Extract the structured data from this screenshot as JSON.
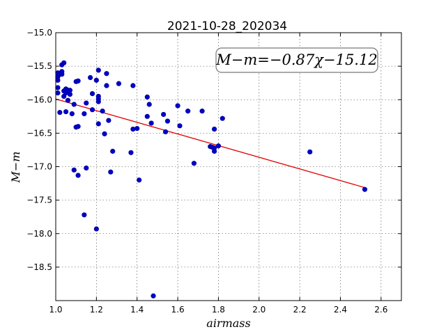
{
  "chart_data": {
    "type": "scatter",
    "title": "2021-10-28_202034",
    "xlabel": "airmass",
    "ylabel": "M−m",
    "xlim": [
      1.0,
      2.7
    ],
    "ylim": [
      -19.0,
      -15.0
    ],
    "y_inverted": true,
    "grid": true,
    "x_ticks": [
      1.0,
      1.2,
      1.4,
      1.6,
      1.8,
      2.0,
      2.2,
      2.4,
      2.6
    ],
    "x_tick_labels": [
      "1.0",
      "1.2",
      "1.4",
      "1.6",
      "1.8",
      "2.0",
      "2.2",
      "2.4",
      "2.6"
    ],
    "y_ticks": [
      -15.0,
      -15.5,
      -16.0,
      -16.5,
      -17.0,
      -17.5,
      -18.0,
      -18.5
    ],
    "y_tick_labels": [
      "−15.0",
      "−15.5",
      "−16.0",
      "−16.5",
      "−17.0",
      "−17.5",
      "−18.0",
      "−18.5"
    ],
    "annotation": "M−m=−0.87χ−15.12",
    "annotation_position": "top-right",
    "points": [
      [
        1.01,
        -15.6
      ],
      [
        1.01,
        -15.66
      ],
      [
        1.01,
        -15.71
      ],
      [
        1.01,
        -15.82
      ],
      [
        1.01,
        -15.9
      ],
      [
        1.02,
        -15.62
      ],
      [
        1.02,
        -16.19
      ],
      [
        1.03,
        -15.48
      ],
      [
        1.03,
        -15.58
      ],
      [
        1.03,
        -15.62
      ],
      [
        1.04,
        -15.45
      ],
      [
        1.04,
        -15.87
      ],
      [
        1.04,
        -15.95
      ],
      [
        1.05,
        -15.84
      ],
      [
        1.05,
        -15.9
      ],
      [
        1.05,
        -16.18
      ],
      [
        1.06,
        -15.86
      ],
      [
        1.06,
        -16.01
      ],
      [
        1.07,
        -15.86
      ],
      [
        1.07,
        -15.92
      ],
      [
        1.08,
        -16.21
      ],
      [
        1.09,
        -17.05
      ],
      [
        1.09,
        -16.07
      ],
      [
        1.1,
        -15.73
      ],
      [
        1.1,
        -16.41
      ],
      [
        1.11,
        -16.4
      ],
      [
        1.11,
        -15.72
      ],
      [
        1.11,
        -17.13
      ],
      [
        1.14,
        -16.21
      ],
      [
        1.14,
        -17.72
      ],
      [
        1.15,
        -16.05
      ],
      [
        1.15,
        -17.02
      ],
      [
        1.17,
        -15.67
      ],
      [
        1.18,
        -15.91
      ],
      [
        1.18,
        -16.15
      ],
      [
        1.2,
        -15.71
      ],
      [
        1.2,
        -17.93
      ],
      [
        1.21,
        -15.56
      ],
      [
        1.21,
        -15.95
      ],
      [
        1.21,
        -15.99
      ],
      [
        1.21,
        -16.03
      ],
      [
        1.21,
        -16.36
      ],
      [
        1.23,
        -16.17
      ],
      [
        1.24,
        -16.51
      ],
      [
        1.25,
        -15.61
      ],
      [
        1.25,
        -15.79
      ],
      [
        1.26,
        -16.31
      ],
      [
        1.27,
        -17.08
      ],
      [
        1.28,
        -16.77
      ],
      [
        1.31,
        -15.76
      ],
      [
        1.37,
        -16.79
      ],
      [
        1.38,
        -15.79
      ],
      [
        1.38,
        -16.44
      ],
      [
        1.4,
        -16.43
      ],
      [
        1.41,
        -17.2
      ],
      [
        1.45,
        -15.96
      ],
      [
        1.45,
        -16.25
      ],
      [
        1.46,
        -16.07
      ],
      [
        1.47,
        -16.35
      ],
      [
        1.48,
        -18.93
      ],
      [
        1.53,
        -16.22
      ],
      [
        1.54,
        -16.48
      ],
      [
        1.55,
        -16.32
      ],
      [
        1.6,
        -16.09
      ],
      [
        1.61,
        -16.39
      ],
      [
        1.65,
        -16.17
      ],
      [
        1.68,
        -16.95
      ],
      [
        1.72,
        -16.17
      ],
      [
        1.76,
        -16.7
      ],
      [
        1.77,
        -16.71
      ],
      [
        1.78,
        -16.44
      ],
      [
        1.78,
        -16.72
      ],
      [
        1.78,
        -16.77
      ],
      [
        1.8,
        -16.69
      ],
      [
        1.82,
        -16.28
      ],
      [
        2.25,
        -16.78
      ],
      [
        2.52,
        -17.34
      ]
    ],
    "fit_line": {
      "slope": -0.87,
      "intercept": -15.12,
      "x_range": [
        1.0,
        2.52
      ]
    }
  }
}
